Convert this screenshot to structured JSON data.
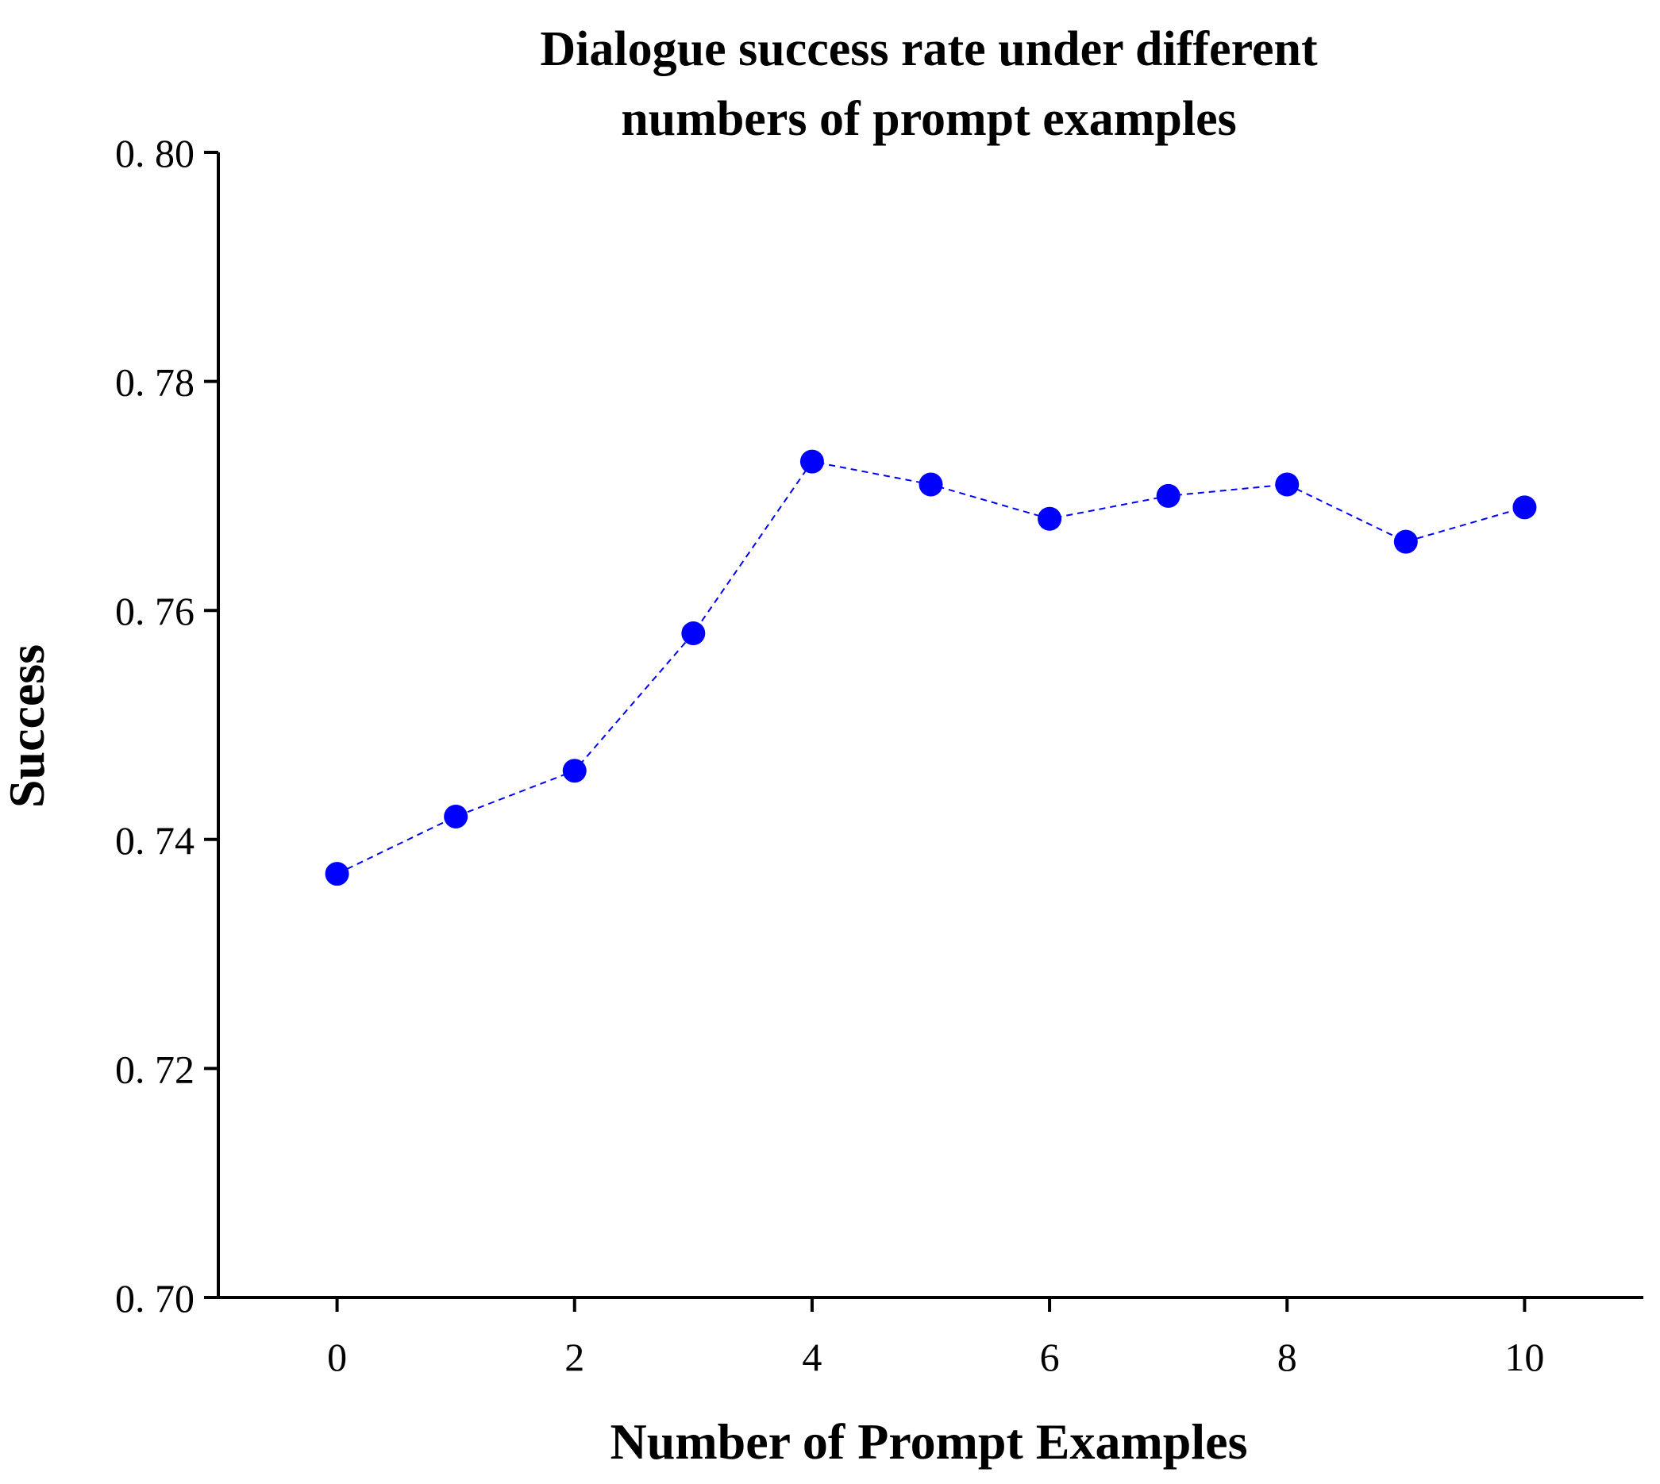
{
  "chart_data": {
    "type": "line",
    "title_lines": [
      "Dialogue success rate under different",
      "numbers of prompt examples"
    ],
    "xlabel": "Number of Prompt Examples",
    "ylabel": "Success",
    "x": [
      0,
      1,
      2,
      3,
      4,
      5,
      6,
      7,
      8,
      9,
      10
    ],
    "series": [
      {
        "name": "Success",
        "values": [
          0.737,
          0.742,
          0.746,
          0.758,
          0.773,
          0.771,
          0.768,
          0.77,
          0.771,
          0.766,
          0.769
        ],
        "color": "#0000ff",
        "line_style": "dashed",
        "marker": "circle"
      }
    ],
    "xlim": [
      -1,
      11
    ],
    "ylim": [
      0.7,
      0.8
    ],
    "x_ticks": [
      0,
      2,
      4,
      6,
      8,
      10
    ],
    "x_tick_labels": [
      "0",
      "2",
      "4",
      "6",
      "8",
      "10"
    ],
    "y_ticks": [
      0.7,
      0.72,
      0.74,
      0.76,
      0.78,
      0.8
    ],
    "y_tick_labels": [
      "0. 70",
      "0. 72",
      "0. 74",
      "0. 76",
      "0. 78",
      "0. 80"
    ],
    "grid": false,
    "legend": "none"
  }
}
